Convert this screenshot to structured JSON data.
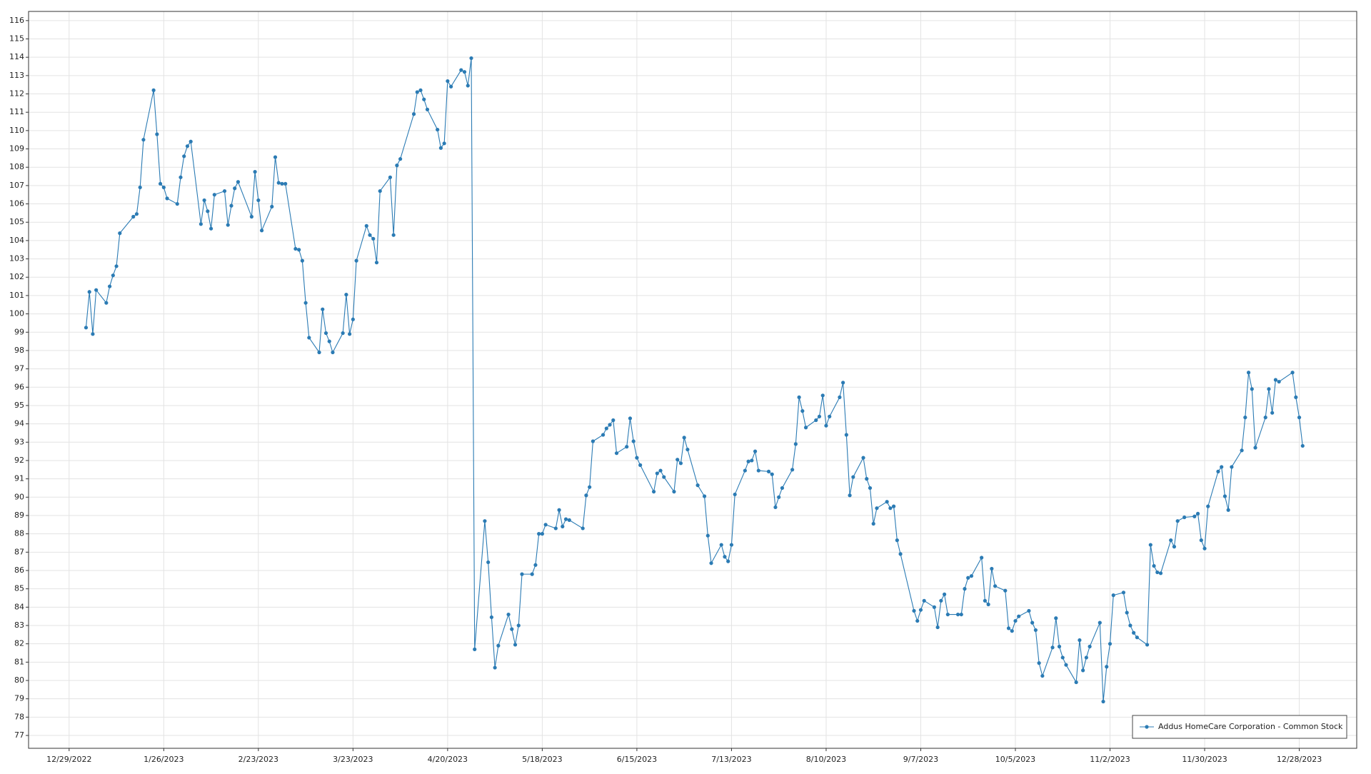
{
  "chart_data": {
    "type": "line",
    "x": [
      "1/3/2023",
      "1/4/2023",
      "1/5/2023",
      "1/6/2023",
      "1/9/2023",
      "1/10/2023",
      "1/11/2023",
      "1/12/2023",
      "1/13/2023",
      "1/17/2023",
      "1/18/2023",
      "1/19/2023",
      "1/20/2023",
      "1/23/2023",
      "1/24/2023",
      "1/25/2023",
      "1/26/2023",
      "1/27/2023",
      "1/30/2023",
      "1/31/2023",
      "2/1/2023",
      "2/2/2023",
      "2/3/2023",
      "2/6/2023",
      "2/7/2023",
      "2/8/2023",
      "2/9/2023",
      "2/10/2023",
      "2/13/2023",
      "2/14/2023",
      "2/15/2023",
      "2/16/2023",
      "2/17/2023",
      "2/21/2023",
      "2/22/2023",
      "2/23/2023",
      "2/24/2023",
      "2/27/2023",
      "2/28/2023",
      "3/1/2023",
      "3/2/2023",
      "3/3/2023",
      "3/6/2023",
      "3/7/2023",
      "3/8/2023",
      "3/9/2023",
      "3/10/2023",
      "3/13/2023",
      "3/14/2023",
      "3/15/2023",
      "3/16/2023",
      "3/17/2023",
      "3/20/2023",
      "3/21/2023",
      "3/22/2023",
      "3/23/2023",
      "3/24/2023",
      "3/27/2023",
      "3/28/2023",
      "3/29/2023",
      "3/30/2023",
      "3/31/2023",
      "4/3/2023",
      "4/4/2023",
      "4/5/2023",
      "4/6/2023",
      "4/10/2023",
      "4/11/2023",
      "4/12/2023",
      "4/13/2023",
      "4/14/2023",
      "4/17/2023",
      "4/18/2023",
      "4/19/2023",
      "4/20/2023",
      "4/21/2023",
      "4/24/2023",
      "4/25/2023",
      "4/26/2023",
      "4/27/2023",
      "4/28/2023",
      "5/1/2023",
      "5/2/2023",
      "5/3/2023",
      "5/4/2023",
      "5/5/2023",
      "5/8/2023",
      "5/9/2023",
      "5/10/2023",
      "5/11/2023",
      "5/12/2023",
      "5/15/2023",
      "5/16/2023",
      "5/17/2023",
      "5/18/2023",
      "5/19/2023",
      "5/22/2023",
      "5/23/2023",
      "5/24/2023",
      "5/25/2023",
      "5/26/2023",
      "5/30/2023",
      "5/31/2023",
      "6/1/2023",
      "6/2/2023",
      "6/5/2023",
      "6/6/2023",
      "6/7/2023",
      "6/8/2023",
      "6/9/2023",
      "6/12/2023",
      "6/13/2023",
      "6/14/2023",
      "6/15/2023",
      "6/16/2023",
      "6/20/2023",
      "6/21/2023",
      "6/22/2023",
      "6/23/2023",
      "6/26/2023",
      "6/27/2023",
      "6/28/2023",
      "6/29/2023",
      "6/30/2023",
      "7/3/2023",
      "7/5/2023",
      "7/6/2023",
      "7/7/2023",
      "7/10/2023",
      "7/11/2023",
      "7/12/2023",
      "7/13/2023",
      "7/14/2023",
      "7/17/2023",
      "7/18/2023",
      "7/19/2023",
      "7/20/2023",
      "7/21/2023",
      "7/24/2023",
      "7/25/2023",
      "7/26/2023",
      "7/27/2023",
      "7/28/2023",
      "7/31/2023",
      "8/1/2023",
      "8/2/2023",
      "8/3/2023",
      "8/4/2023",
      "8/7/2023",
      "8/8/2023",
      "8/9/2023",
      "8/10/2023",
      "8/11/2023",
      "8/14/2023",
      "8/15/2023",
      "8/16/2023",
      "8/17/2023",
      "8/18/2023",
      "8/21/2023",
      "8/22/2023",
      "8/23/2023",
      "8/24/2023",
      "8/25/2023",
      "8/28/2023",
      "8/29/2023",
      "8/30/2023",
      "8/31/2023",
      "9/1/2023",
      "9/5/2023",
      "9/6/2023",
      "9/7/2023",
      "9/8/2023",
      "9/11/2023",
      "9/12/2023",
      "9/13/2023",
      "9/14/2023",
      "9/15/2023",
      "9/18/2023",
      "9/19/2023",
      "9/20/2023",
      "9/21/2023",
      "9/22/2023",
      "9/25/2023",
      "9/26/2023",
      "9/27/2023",
      "9/28/2023",
      "9/29/2023",
      "10/2/2023",
      "10/3/2023",
      "10/4/2023",
      "10/5/2023",
      "10/6/2023",
      "10/9/2023",
      "10/10/2023",
      "10/11/2023",
      "10/12/2023",
      "10/13/2023",
      "10/16/2023",
      "10/17/2023",
      "10/18/2023",
      "10/19/2023",
      "10/20/2023",
      "10/23/2023",
      "10/24/2023",
      "10/25/2023",
      "10/26/2023",
      "10/27/2023",
      "10/30/2023",
      "10/31/2023",
      "11/1/2023",
      "11/2/2023",
      "11/3/2023",
      "11/6/2023",
      "11/7/2023",
      "11/8/2023",
      "11/9/2023",
      "11/10/2023",
      "11/13/2023",
      "11/14/2023",
      "11/15/2023",
      "11/16/2023",
      "11/17/2023",
      "11/20/2023",
      "11/21/2023",
      "11/22/2023",
      "11/24/2023",
      "11/27/2023",
      "11/28/2023",
      "11/29/2023",
      "11/30/2023",
      "12/1/2023",
      "12/4/2023",
      "12/5/2023",
      "12/6/2023",
      "12/7/2023",
      "12/8/2023",
      "12/11/2023",
      "12/12/2023",
      "12/13/2023",
      "12/14/2023",
      "12/15/2023",
      "12/18/2023",
      "12/19/2023",
      "12/20/2023",
      "12/21/2023",
      "12/22/2023",
      "12/26/2023",
      "12/27/2023",
      "12/28/2023",
      "12/29/2023"
    ],
    "series": [
      {
        "name": "Addus HomeCare Corporation - Common Stock",
        "color": "#2b7bb4",
        "values": [
          99.25,
          101.2,
          98.9,
          101.3,
          100.6,
          101.5,
          102.1,
          102.6,
          104.4,
          105.3,
          105.45,
          106.9,
          109.5,
          112.2,
          109.8,
          107.1,
          106.9,
          106.3,
          106.0,
          107.45,
          108.6,
          109.15,
          109.4,
          104.9,
          106.2,
          105.6,
          104.65,
          106.5,
          106.7,
          104.85,
          105.9,
          106.85,
          107.2,
          105.3,
          107.75,
          106.2,
          104.55,
          105.85,
          108.55,
          107.15,
          107.1,
          107.1,
          103.55,
          103.5,
          102.9,
          100.6,
          98.7,
          97.9,
          100.25,
          98.95,
          98.5,
          97.9,
          98.95,
          101.05,
          98.9,
          99.7,
          102.9,
          104.8,
          104.3,
          104.1,
          102.8,
          106.7,
          107.45,
          104.3,
          108.1,
          108.45,
          110.9,
          112.1,
          112.2,
          111.7,
          111.15,
          110.05,
          109.05,
          109.3,
          112.7,
          112.4,
          113.3,
          113.2,
          112.45,
          113.95,
          81.7,
          88.7,
          86.45,
          83.45,
          80.7,
          81.9,
          83.6,
          82.8,
          81.95,
          83.0,
          85.8,
          85.8,
          86.3,
          88.0,
          88.0,
          88.5,
          88.3,
          89.3,
          88.4,
          88.8,
          88.75,
          88.3,
          90.1,
          90.55,
          93.05,
          93.4,
          93.75,
          93.95,
          94.2,
          92.4,
          92.75,
          94.3,
          93.05,
          92.15,
          91.75,
          90.3,
          91.3,
          91.45,
          91.1,
          90.3,
          92.05,
          91.85,
          93.25,
          92.6,
          90.65,
          90.05,
          87.9,
          86.4,
          87.4,
          86.75,
          86.5,
          87.4,
          90.15,
          91.45,
          91.95,
          92.0,
          92.5,
          91.45,
          91.4,
          91.25,
          89.45,
          90.0,
          90.5,
          91.5,
          92.9,
          95.45,
          94.7,
          93.8,
          94.2,
          94.4,
          95.55,
          93.9,
          94.4,
          95.45,
          96.25,
          93.4,
          90.1,
          91.1,
          92.15,
          91.0,
          90.5,
          88.55,
          89.4,
          89.75,
          89.4,
          89.5,
          87.65,
          86.9,
          83.8,
          83.25,
          83.85,
          84.35,
          84.0,
          82.9,
          84.35,
          84.7,
          83.6,
          83.6,
          83.6,
          85.0,
          85.6,
          85.7,
          86.7,
          84.35,
          84.15,
          86.1,
          85.15,
          84.9,
          82.85,
          82.7,
          83.25,
          83.5,
          83.8,
          83.15,
          82.75,
          80.95,
          80.25,
          81.8,
          83.4,
          81.85,
          81.25,
          80.85,
          79.9,
          82.2,
          80.55,
          81.25,
          81.85,
          83.15,
          78.85,
          80.75,
          82.0,
          84.65,
          84.8,
          83.7,
          83.0,
          82.6,
          82.35,
          81.95,
          87.4,
          86.25,
          85.9,
          85.85,
          87.65,
          87.3,
          88.7,
          88.9,
          88.95,
          89.1,
          87.65,
          87.2,
          89.5,
          91.4,
          91.65,
          90.05,
          89.3,
          91.65,
          92.55,
          94.35,
          96.8,
          95.9,
          92.7,
          94.35,
          95.9,
          94.6,
          96.4,
          96.3,
          96.8,
          95.45,
          94.35,
          92.8
        ]
      }
    ],
    "xlim": [
      "12/17/2022",
      "1/14/2024"
    ],
    "xticks": [
      "12/29/2022",
      "1/26/2023",
      "2/23/2023",
      "3/23/2023",
      "4/20/2023",
      "5/18/2023",
      "6/15/2023",
      "7/13/2023",
      "8/10/2023",
      "9/7/2023",
      "10/5/2023",
      "11/2/2023",
      "11/30/2023",
      "12/28/2023"
    ],
    "ylim": [
      76.3,
      116.5
    ],
    "yticks": [
      77,
      78,
      79,
      80,
      81,
      82,
      83,
      84,
      85,
      86,
      87,
      88,
      89,
      90,
      91,
      92,
      93,
      94,
      95,
      96,
      97,
      98,
      99,
      100,
      101,
      102,
      103,
      104,
      105,
      106,
      107,
      108,
      109,
      110,
      111,
      112,
      113,
      114,
      115,
      116
    ],
    "grid": true,
    "legend": "lower right"
  }
}
